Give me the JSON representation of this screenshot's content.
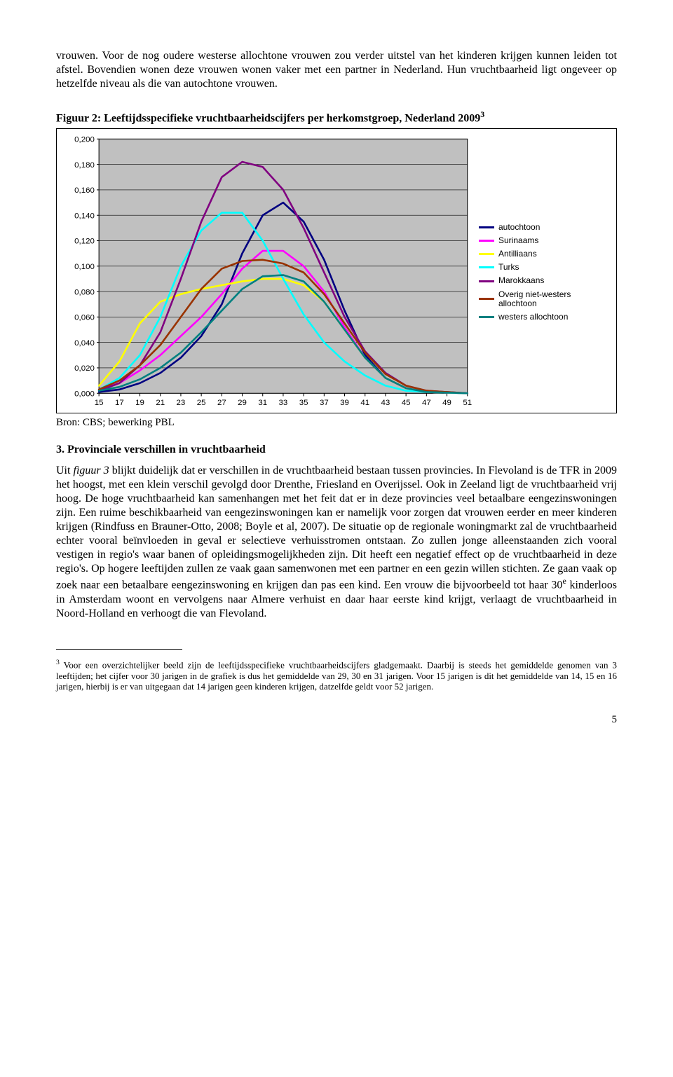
{
  "para1": "vrouwen. Voor de nog oudere westerse allochtone vrouwen zou verder uitstel van het kinderen krijgen kunnen leiden tot afstel. Bovendien wonen deze vrouwen wonen vaker met een partner in Nederland. Hun vruchtbaarheid ligt ongeveer op hetzelfde niveau als die van autochtone vrouwen.",
  "figure": {
    "title_pre": "Figuur 2: Leeftijdsspecifieke vruchtbaarheidscijfers per herkomstgroep, Nederland 2009",
    "title_sup": "3",
    "bron": "Bron: CBS; bewerking PBL",
    "chart": {
      "type": "line",
      "background_color": "#c0c0c0",
      "grid_color": "#000000",
      "x_values": [
        15,
        17,
        19,
        21,
        23,
        25,
        27,
        29,
        31,
        33,
        35,
        37,
        39,
        41,
        43,
        45,
        47,
        49,
        51
      ],
      "x_tick_labels": [
        "15",
        "17",
        "19",
        "21",
        "23",
        "25",
        "27",
        "29",
        "31",
        "33",
        "35",
        "37",
        "39",
        "41",
        "43",
        "45",
        "47",
        "49",
        "51"
      ],
      "y_min": 0.0,
      "y_max": 0.2,
      "y_tick_step": 0.02,
      "y_tick_labels": [
        "0,000",
        "0,020",
        "0,040",
        "0,060",
        "0,080",
        "0,100",
        "0,120",
        "0,140",
        "0,160",
        "0,180",
        "0,200"
      ],
      "line_width": 2.5,
      "label_fontsize": 11,
      "label_font": "Arial",
      "series": [
        {
          "name": "autochtoon",
          "color": "#000080",
          "data": [
            0.001,
            0.003,
            0.008,
            0.016,
            0.028,
            0.045,
            0.07,
            0.11,
            0.14,
            0.15,
            0.135,
            0.105,
            0.065,
            0.03,
            0.012,
            0.004,
            0.001,
            0.0005,
            0.0
          ]
        },
        {
          "name": "Surinaams",
          "color": "#ff00ff",
          "data": [
            0.003,
            0.008,
            0.018,
            0.03,
            0.045,
            0.06,
            0.078,
            0.098,
            0.112,
            0.112,
            0.1,
            0.08,
            0.052,
            0.028,
            0.012,
            0.004,
            0.001,
            0.0005,
            0.0
          ]
        },
        {
          "name": "Antilliaans",
          "color": "#ffff00",
          "data": [
            0.006,
            0.025,
            0.055,
            0.072,
            0.078,
            0.082,
            0.085,
            0.088,
            0.09,
            0.09,
            0.085,
            0.072,
            0.05,
            0.028,
            0.012,
            0.004,
            0.001,
            0.0005,
            0.0
          ]
        },
        {
          "name": "Turks",
          "color": "#00ffff",
          "data": [
            0.003,
            0.012,
            0.03,
            0.06,
            0.1,
            0.128,
            0.142,
            0.142,
            0.12,
            0.09,
            0.062,
            0.04,
            0.025,
            0.014,
            0.006,
            0.002,
            0.001,
            0.0005,
            0.0
          ]
        },
        {
          "name": "Marokkaans",
          "color": "#800080",
          "data": [
            0.002,
            0.008,
            0.022,
            0.048,
            0.09,
            0.135,
            0.17,
            0.182,
            0.178,
            0.16,
            0.13,
            0.095,
            0.06,
            0.033,
            0.016,
            0.006,
            0.002,
            0.001,
            0.0
          ]
        },
        {
          "name": "Overig niet-westers allochtoon",
          "color": "#993300",
          "data": [
            0.003,
            0.01,
            0.022,
            0.038,
            0.06,
            0.082,
            0.098,
            0.104,
            0.105,
            0.102,
            0.095,
            0.078,
            0.055,
            0.032,
            0.015,
            0.006,
            0.002,
            0.001,
            0.0
          ]
        },
        {
          "name": "westers allochtoon",
          "color": "#008080",
          "data": [
            0.002,
            0.005,
            0.011,
            0.02,
            0.032,
            0.048,
            0.065,
            0.082,
            0.092,
            0.093,
            0.088,
            0.072,
            0.05,
            0.028,
            0.012,
            0.004,
            0.001,
            0.0005,
            0.0
          ]
        }
      ]
    }
  },
  "section": {
    "heading": "3. Provinciale verschillen in vruchtbaarheid",
    "body_pre": "Uit ",
    "body_italic": "figuur 3",
    "body_post_1": " blijkt duidelijk dat er verschillen in de vruchtbaarheid bestaan tussen provincies. In Flevoland is de TFR in 2009 het hoogst, met een klein verschil gevolgd door Drenthe, Friesland en Overijssel. Ook in Zeeland ligt de vruchtbaarheid vrij hoog. De hoge vruchtbaarheid kan samenhangen met het feit dat er in deze provincies veel betaalbare eengezinswoningen zijn. Een ruime beschikbaarheid van eengezinswoningen kan er namelijk voor zorgen dat vrouwen eerder en meer kinderen krijgen (Rindfuss en Brauner-Otto, 2008; Boyle et al, 2007). De situatie op de regionale woningmarkt zal de vruchtbaarheid echter vooral beïnvloeden in geval er selectieve verhuisstromen ontstaan. Zo zullen jonge alleenstaanden zich vooral vestigen in regio's waar banen of opleidingsmogelijkheden zijn. Dit heeft een negatief effect op de vruchtbaarheid in deze regio's. Op hogere leeftijden zullen ze vaak gaan samenwonen met een partner en een gezin willen stichten. Ze gaan vaak op zoek naar een betaalbare eengezinswoning en krijgen dan pas een kind. Een vrouw die bijvoorbeeld tot haar 30",
    "body_sup": "e",
    "body_post_2": " kinderloos in Amsterdam woont en vervolgens naar Almere verhuist en daar haar eerste kind krijgt, verlaagt de vruchtbaarheid in Noord-Holland en verhoogt die van Flevoland."
  },
  "footnote": {
    "num": "3",
    "text": " Voor een overzichtelijker beeld zijn de leeftijdsspecifieke vruchtbaarheidscijfers gladgemaakt. Daarbij is steeds het gemiddelde genomen van 3 leeftijden; het cijfer voor 30 jarigen in de grafiek is dus het gemiddelde van 29, 30 en 31 jarigen. Voor 15 jarigen is dit het gemiddelde van 14, 15 en 16 jarigen, hierbij is er van uitgegaan dat 14 jarigen geen kinderen krijgen, datzelfde geldt voor 52 jarigen."
  },
  "page_number": "5"
}
